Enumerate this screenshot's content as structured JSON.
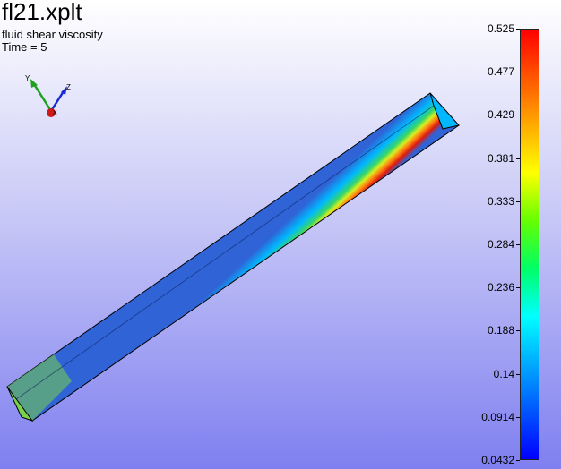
{
  "header": {
    "title": "fl21.xplt",
    "subtitle": "fluid shear viscosity",
    "time_label": "Time = 5"
  },
  "triad": {
    "axes": [
      {
        "label": "Y",
        "color": "#1ea01e"
      },
      {
        "label": "Z",
        "color": "#1a2ad0"
      },
      {
        "label": "X",
        "color": "#cc1a1a"
      }
    ]
  },
  "colorbar": {
    "min": 0.0432,
    "max": 0.525,
    "ticks": [
      "0.525",
      "0.477",
      "0.429",
      "0.381",
      "0.333",
      "0.284",
      "0.236",
      "0.188",
      "0.14",
      "0.0914",
      "0.0432"
    ],
    "colormap": [
      "#0000ff",
      "#0055ff",
      "#00aaff",
      "#00ffff",
      "#00ff66",
      "#66ff00",
      "#ffff00",
      "#ffaa00",
      "#ff5500",
      "#ff0000"
    ]
  },
  "model": {
    "colors": {
      "outer": "#2f63d6",
      "mid": "#00b8ff",
      "green": "#36d66a",
      "yellow": "#d8ef20",
      "orange": "#ff7f12",
      "red": "#dc1b0f",
      "end_face": "#7ad24a"
    }
  }
}
